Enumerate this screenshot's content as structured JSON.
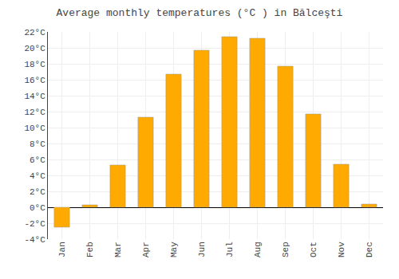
{
  "chart_data": {
    "type": "bar",
    "title": "Average monthly temperatures (°C ) in Bălceşti",
    "categories": [
      "Jan",
      "Feb",
      "Mar",
      "Apr",
      "May",
      "Jun",
      "Jul",
      "Aug",
      "Sep",
      "Oct",
      "Nov",
      "Dec"
    ],
    "values": [
      -2.5,
      0.3,
      5.3,
      11.3,
      16.7,
      19.7,
      21.4,
      21.2,
      17.7,
      11.7,
      5.4,
      0.4
    ],
    "color": "#FFAA00",
    "ylim": [
      -4,
      22
    ],
    "yticks": [
      {
        "value": -4,
        "label": "-4°C"
      },
      {
        "value": -2,
        "label": "-2°C"
      },
      {
        "value": 0,
        "label": "0°C"
      },
      {
        "value": 2,
        "label": "2°C"
      },
      {
        "value": 4,
        "label": "4°C"
      },
      {
        "value": 6,
        "label": "6°C"
      },
      {
        "value": 8,
        "label": "8°C"
      },
      {
        "value": 10,
        "label": "10°C"
      },
      {
        "value": 12,
        "label": "12°C"
      },
      {
        "value": 14,
        "label": "14°C"
      },
      {
        "value": 16,
        "label": "16°C"
      },
      {
        "value": 18,
        "label": "18°C"
      },
      {
        "value": 20,
        "label": "20°C"
      },
      {
        "value": 22,
        "label": "22°C"
      }
    ],
    "grid": true
  }
}
